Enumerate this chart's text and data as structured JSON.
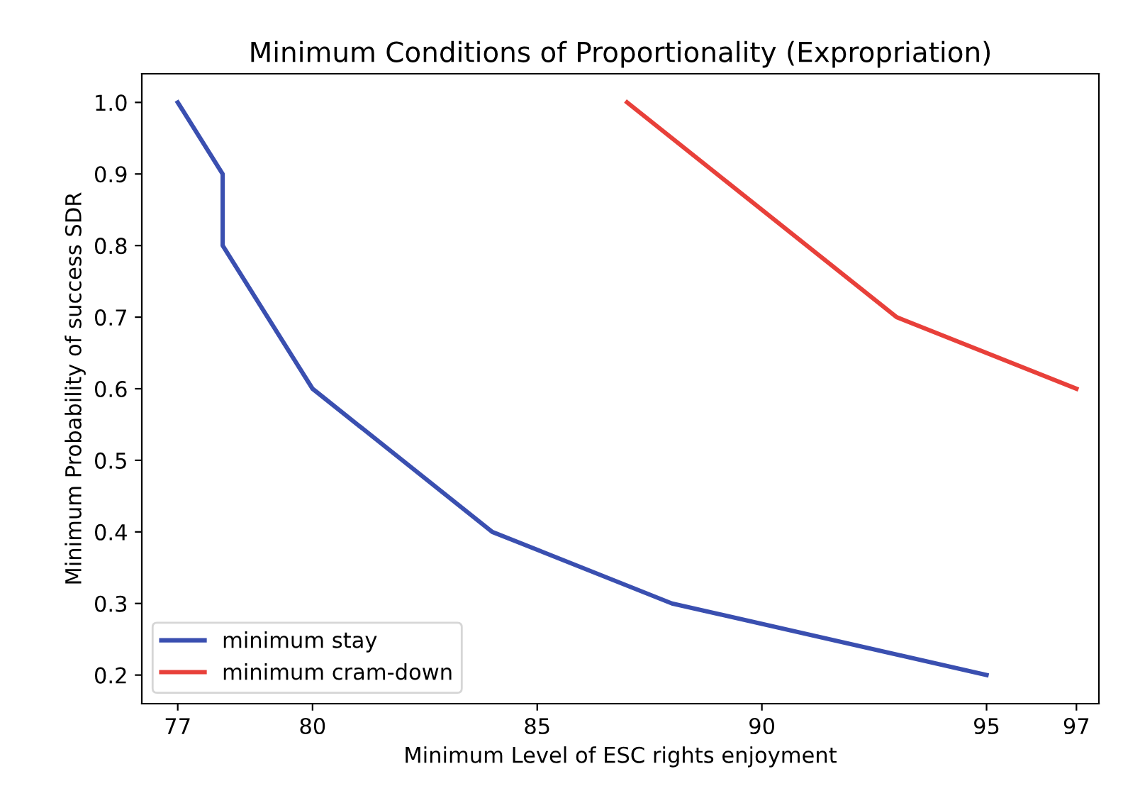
{
  "chart_data": {
    "type": "line",
    "title": "Minimum Conditions of Proportionality (Expropriation)",
    "xlabel": "Minimum Level of ESC rights enjoyment",
    "ylabel": "Minimum Probability of success SDR",
    "series": [
      {
        "name": "minimum stay",
        "color": "#3a4fb0",
        "x": [
          77,
          78,
          78,
          80,
          84,
          88,
          95
        ],
        "values": [
          1.0,
          0.9,
          0.8,
          0.6,
          0.4,
          0.3,
          0.2
        ]
      },
      {
        "name": "minimum cram-down",
        "color": "#e8403a",
        "x": [
          87,
          93,
          97
        ],
        "values": [
          1.0,
          0.7,
          0.6
        ]
      }
    ],
    "xlim": [
      76.2,
      97.5
    ],
    "xticks": [
      77,
      80,
      85,
      90,
      95,
      97
    ],
    "ylim": [
      0.16,
      1.04
    ],
    "yticks": [
      0.2,
      0.3,
      0.4,
      0.5,
      0.6,
      0.7,
      0.8,
      0.9,
      {
        "value": 1,
        "label": "1.0"
      }
    ],
    "legend": "bottom left",
    "grid": false
  }
}
